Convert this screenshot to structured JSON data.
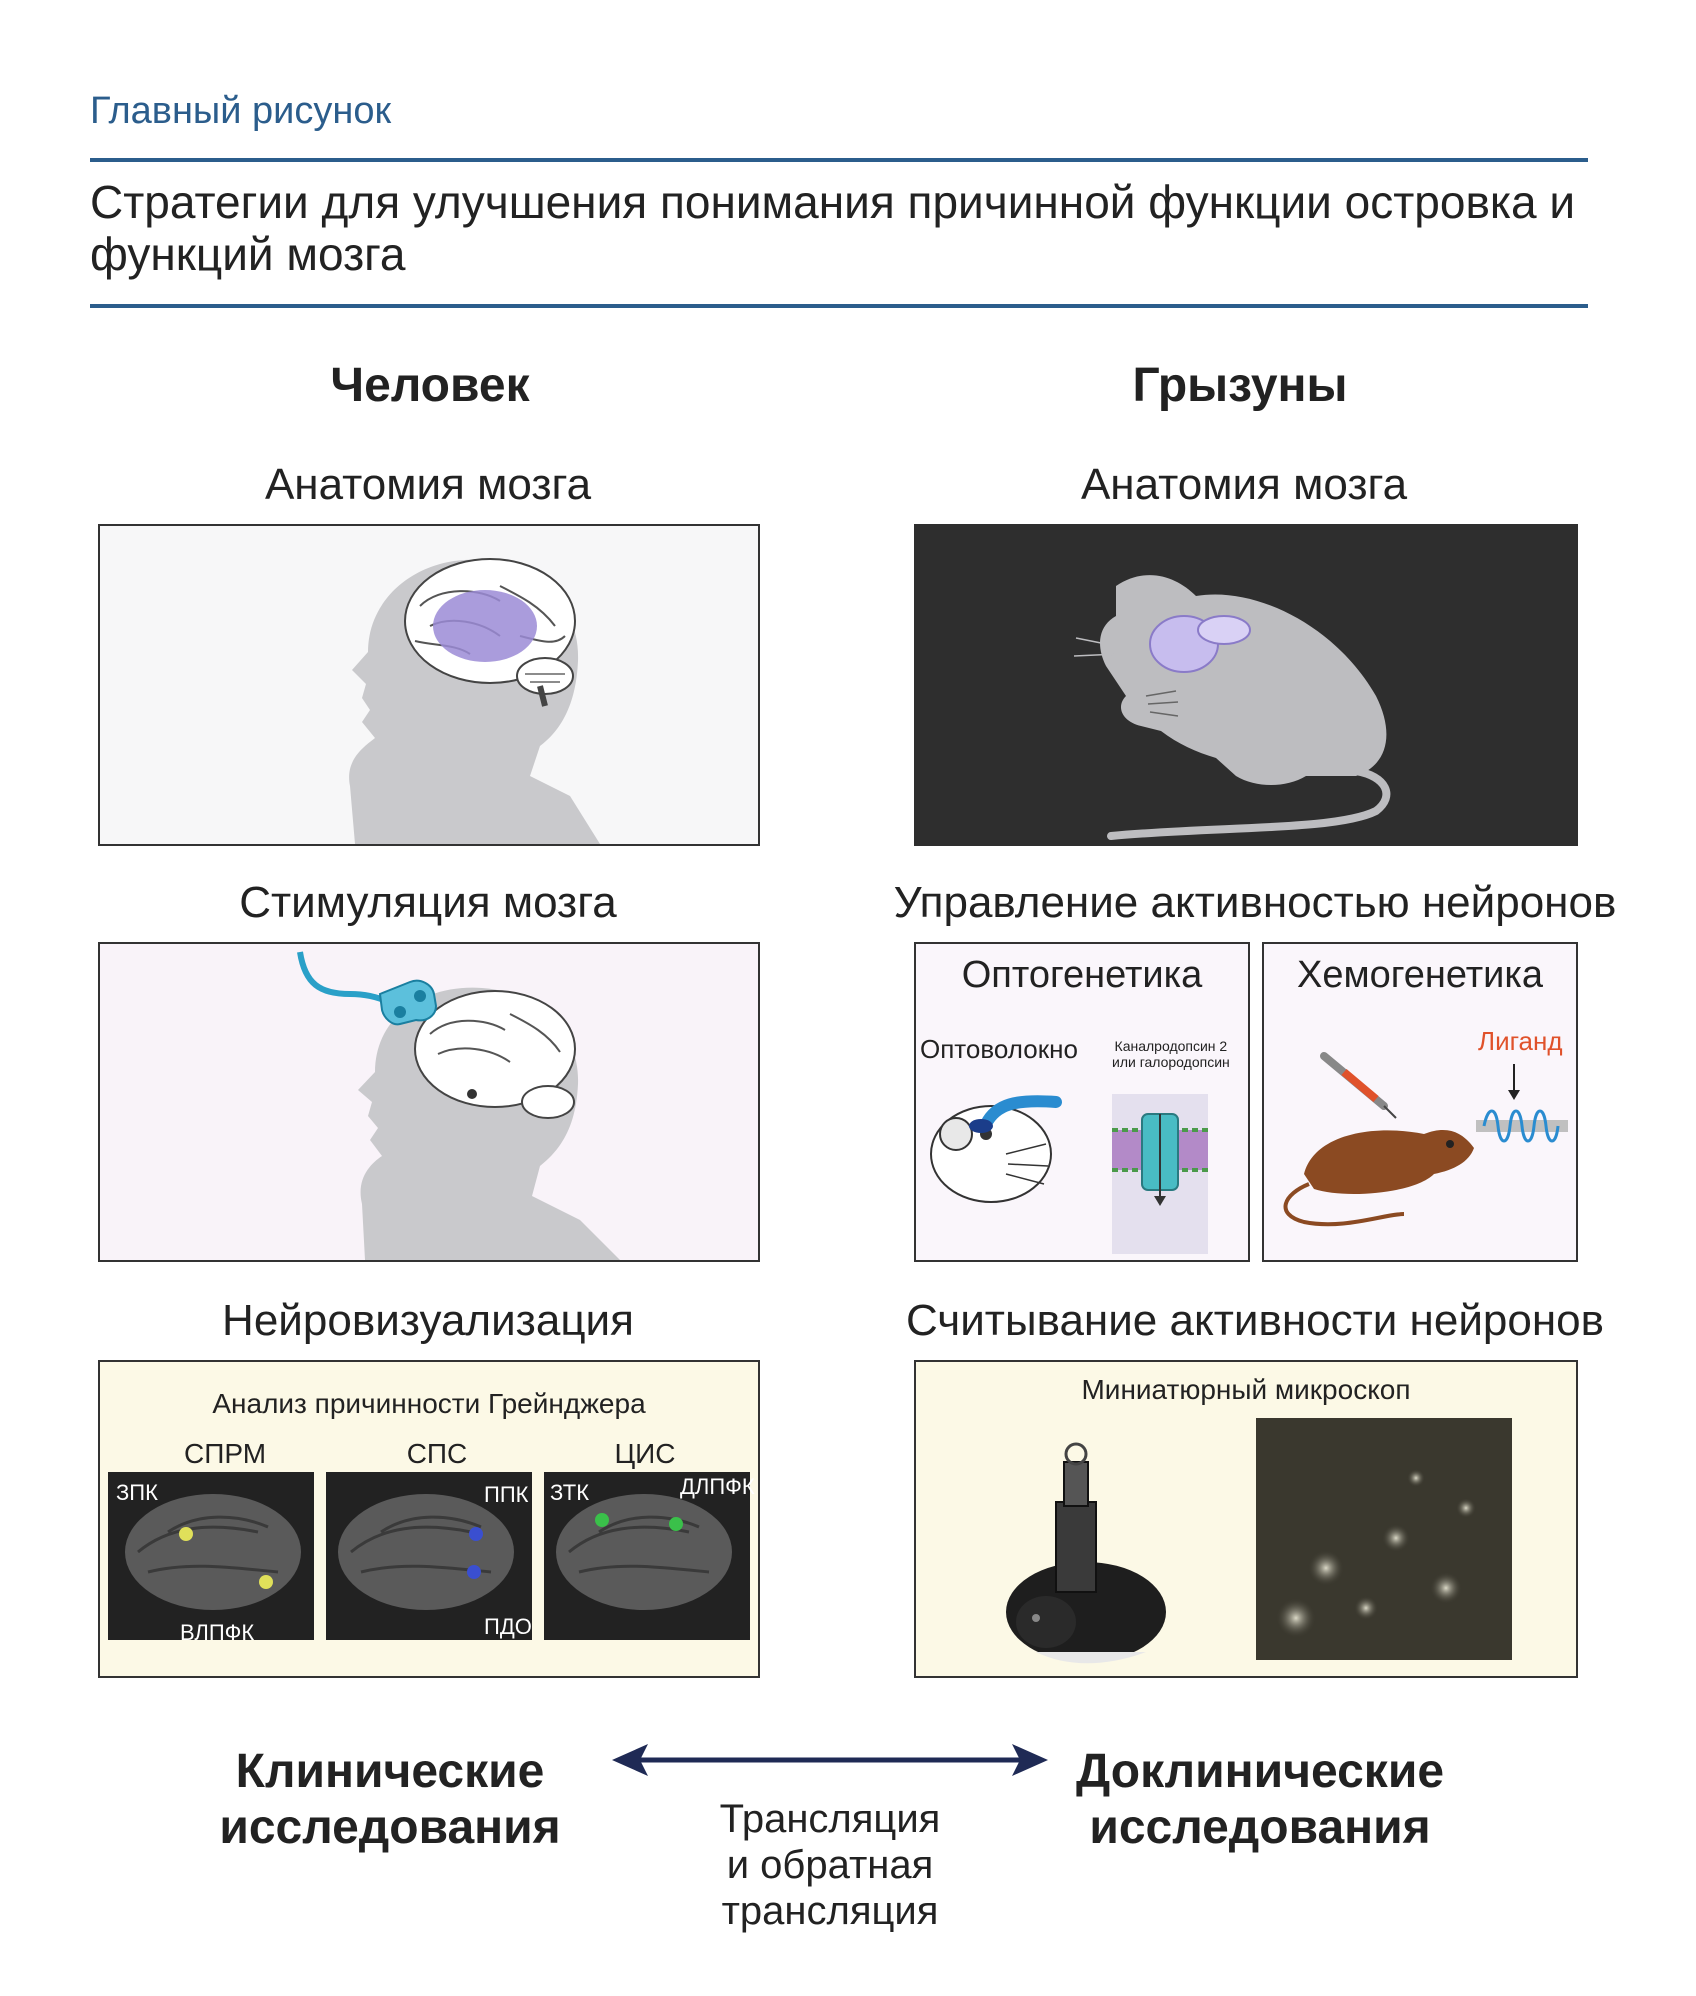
{
  "header": {
    "kicker": "Главный рисунок",
    "title": "Стратегии для улучшения понимания причинной функции островка и функций мозга"
  },
  "columns": {
    "human": "Человек",
    "rodent": "Грызуны"
  },
  "human": {
    "anatomy": "Анатомия мозга",
    "stimulation": "Стимуляция мозга",
    "neuroimaging": "Нейровизуализация",
    "granger": "Анализ причинности Грейнджера",
    "networks": [
      "СПРМ",
      "СПС",
      "ЦИС"
    ],
    "labels": {
      "zpk1": "ЗПК",
      "vlpfk": "ВЛПФК",
      "ppk": "ППК",
      "pdo": "ПДО",
      "ztk": "ЗТК",
      "dlpfk": "ДЛПФК"
    }
  },
  "rodent": {
    "anatomy": "Анатомия мозга",
    "control": "Управление активностью нейронов",
    "optogenetics": "Оптогенетика",
    "chemogenetics": "Хемогенетика",
    "fiber": "Оптоволокно",
    "opsin_line1": "Каналродопсин 2",
    "opsin_line2": "или галородопсин",
    "ligand": "Лиганд",
    "readout": "Считывание активности нейронов",
    "microscope": "Миниатюрный микроскоп"
  },
  "bottom": {
    "clinical_line1": "Клинические",
    "clinical_line2": "исследования",
    "preclinical_line1": "Доклинические",
    "preclinical_line2": "исследования",
    "translation_line1": "Трансляция",
    "translation_line2": "и обратная",
    "translation_line3": "трансляция"
  },
  "colors": {
    "accent": "#2b5d8c",
    "arrow": "#1f2a55",
    "ligand": "#e0522b",
    "brain_highlight": "#9b8bd6"
  }
}
